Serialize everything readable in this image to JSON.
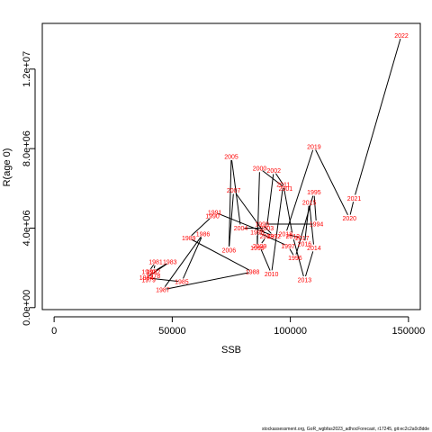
{
  "chart_data": {
    "type": "line",
    "xlabel": "SSB",
    "ylabel": "R(age 0)",
    "xlim": [
      -5000,
      155000
    ],
    "ylim": [
      -100000,
      14300000
    ],
    "x_ticks": [
      0,
      50000,
      100000,
      150000
    ],
    "x_tick_labels": [
      "0",
      "50000",
      "100000",
      "150000"
    ],
    "y_ticks": [
      0,
      4000000,
      8000000,
      12000000
    ],
    "y_tick_labels": [
      "0.0e+00",
      "4.0e+06",
      "8.0e+06",
      "1.2e+07"
    ],
    "grid": false,
    "line_color": "#000000",
    "label_color": "#ff0000",
    "points": [
      {
        "year": "1978",
        "x": 42000,
        "y": 1600000
      },
      {
        "year": "1979",
        "x": 40000,
        "y": 1400000
      },
      {
        "year": "1980",
        "x": 40000,
        "y": 1800000
      },
      {
        "year": "1981",
        "x": 43000,
        "y": 2300000
      },
      {
        "year": "1982",
        "x": 42000,
        "y": 1800000
      },
      {
        "year": "1983",
        "x": 49000,
        "y": 2300000
      },
      {
        "year": "1984",
        "x": 39000,
        "y": 1500000
      },
      {
        "year": "1985",
        "x": 54000,
        "y": 1300000
      },
      {
        "year": "1986",
        "x": 63000,
        "y": 3700000
      },
      {
        "year": "1987",
        "x": 46000,
        "y": 900000
      },
      {
        "year": "1988",
        "x": 84000,
        "y": 1800000
      },
      {
        "year": "1989",
        "x": 57000,
        "y": 3500000
      },
      {
        "year": "1990",
        "x": 67000,
        "y": 4600000
      },
      {
        "year": "1991",
        "x": 68000,
        "y": 4800000
      },
      {
        "year": "1992",
        "x": 93000,
        "y": 3600000
      },
      {
        "year": "1993",
        "x": 88000,
        "y": 4200000
      },
      {
        "year": "1994",
        "x": 111000,
        "y": 4200000
      },
      {
        "year": "1995",
        "x": 110000,
        "y": 5800000
      },
      {
        "year": "1996",
        "x": 102000,
        "y": 2500000
      },
      {
        "year": "1997",
        "x": 99000,
        "y": 3100000
      },
      {
        "year": "1998",
        "x": 86000,
        "y": 3800000
      },
      {
        "year": "1999",
        "x": 86000,
        "y": 3000000
      },
      {
        "year": "2000",
        "x": 87000,
        "y": 7000000
      },
      {
        "year": "2001",
        "x": 98000,
        "y": 6000000
      },
      {
        "year": "2002",
        "x": 93000,
        "y": 6900000
      },
      {
        "year": "2003",
        "x": 90000,
        "y": 4000000
      },
      {
        "year": "2004",
        "x": 79000,
        "y": 4000000
      },
      {
        "year": "2005",
        "x": 75000,
        "y": 7600000
      },
      {
        "year": "2006",
        "x": 74000,
        "y": 2900000
      },
      {
        "year": "2007",
        "x": 76000,
        "y": 5900000
      },
      {
        "year": "2008",
        "x": 90000,
        "y": 3600000
      },
      {
        "year": "2009",
        "x": 87000,
        "y": 3100000
      },
      {
        "year": "2010",
        "x": 92000,
        "y": 1700000
      },
      {
        "year": "2011",
        "x": 97000,
        "y": 6200000
      },
      {
        "year": "2012",
        "x": 101000,
        "y": 3600000
      },
      {
        "year": "2013",
        "x": 106000,
        "y": 1400000
      },
      {
        "year": "2014",
        "x": 110000,
        "y": 3000000
      },
      {
        "year": "2015",
        "x": 108000,
        "y": 5300000
      },
      {
        "year": "2016",
        "x": 106000,
        "y": 3200000
      },
      {
        "year": "2017",
        "x": 105000,
        "y": 3500000
      },
      {
        "year": "2018",
        "x": 98000,
        "y": 3700000
      },
      {
        "year": "2019",
        "x": 110000,
        "y": 8100000
      },
      {
        "year": "2020",
        "x": 125000,
        "y": 4500000
      },
      {
        "year": "2021",
        "x": 127000,
        "y": 5500000
      },
      {
        "year": "2022",
        "x": 147000,
        "y": 13700000
      }
    ]
  },
  "footer": "stockassessment.org, GoR_wgbfas2023_adhocForecast, r17245, git:ec2c2a0c8dde"
}
